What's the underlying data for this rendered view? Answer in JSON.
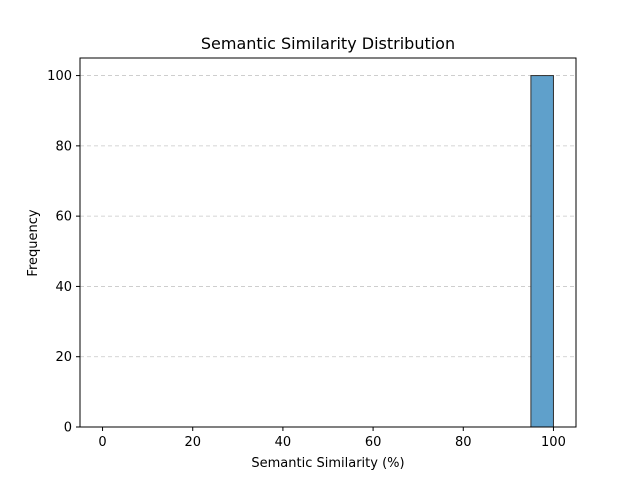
{
  "chart_data": {
    "type": "bar",
    "title": "Semantic Similarity Distribution",
    "xlabel": "Semantic Similarity (%)",
    "ylabel": "Frequency",
    "xlim": [
      -5,
      105
    ],
    "ylim": [
      0,
      105
    ],
    "xticks": [
      0,
      20,
      40,
      60,
      80,
      100
    ],
    "yticks": [
      0,
      20,
      40,
      60,
      80,
      100
    ],
    "grid": "y",
    "bins": [
      {
        "start": 95,
        "end": 100,
        "value": 100
      }
    ],
    "colors": {
      "bar_fill": "#5fa0cb",
      "bar_edge": "#2f2f2f"
    }
  }
}
